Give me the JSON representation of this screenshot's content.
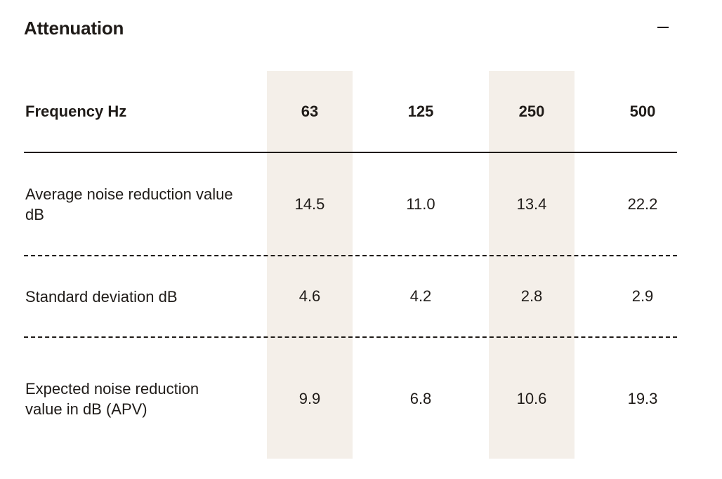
{
  "section": {
    "title": "Attenuation",
    "collapse_icon": "minus-icon"
  },
  "table": {
    "header": {
      "label": "Frequency Hz",
      "values": [
        "63",
        "125",
        "250",
        "500"
      ]
    },
    "rows": [
      {
        "label": "Average noise reduction value dB",
        "values": [
          "14.5",
          "11.0",
          "13.4",
          "22.2"
        ]
      },
      {
        "label": "Standard deviation dB",
        "values": [
          "4.6",
          "4.2",
          "2.8",
          "2.9"
        ]
      },
      {
        "label": "Expected noise reduction value in dB (APV)",
        "values": [
          "9.9",
          "6.8",
          "10.6",
          "19.3"
        ]
      }
    ],
    "highlight_color": "#f4efe9"
  }
}
